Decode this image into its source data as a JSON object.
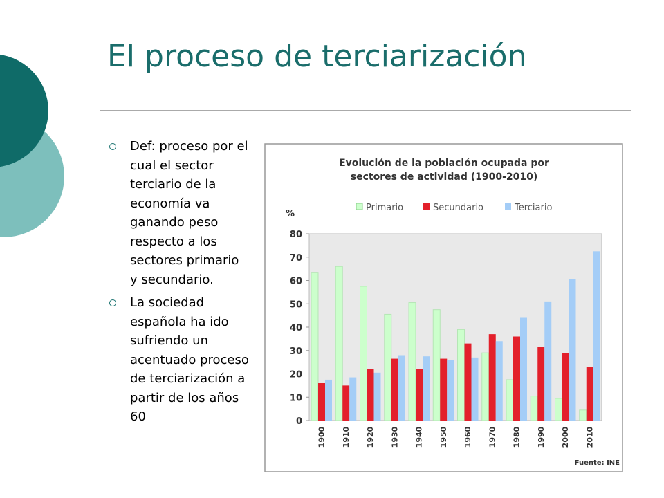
{
  "title": "El proceso de terciarización",
  "bullets": [
    "Def: proceso por el cual el sector terciario de la economía va ganando peso respecto a los sectores primario y secundario.",
    "La sociedad española ha ido sufriendo un acentuado proceso de terciarización a partir de los años 60"
  ],
  "chart_data": {
    "type": "bar",
    "title": [
      "Evolución de la población ocupada por",
      "sectores de actividad (1900-2010)"
    ],
    "y_label": "%",
    "source": "Fuente: INE",
    "categories": [
      "1900",
      "1910",
      "1920",
      "1930",
      "1940",
      "1950",
      "1960",
      "1970",
      "1980",
      "1990",
      "2000",
      "2010"
    ],
    "series": [
      {
        "name": "Primario",
        "color": "#ccffcc",
        "values": [
          63.5,
          66,
          57.5,
          45.5,
          50.5,
          47.5,
          39,
          29,
          17.5,
          10.5,
          9.5,
          4.5
        ]
      },
      {
        "name": "Secundario",
        "color": "#e3202b",
        "values": [
          16,
          15,
          22,
          26.5,
          22,
          26.5,
          33,
          37,
          36,
          31.5,
          29,
          23
        ]
      },
      {
        "name": "Terciario",
        "color": "#a4cdf7",
        "values": [
          17.5,
          18.5,
          20.5,
          28,
          27.5,
          26,
          27,
          34,
          44,
          51,
          60.5,
          72.5
        ]
      }
    ],
    "ylim": [
      0,
      80
    ],
    "yticks": [
      0,
      10,
      20,
      30,
      40,
      50,
      60,
      70,
      80
    ],
    "grid": false
  }
}
